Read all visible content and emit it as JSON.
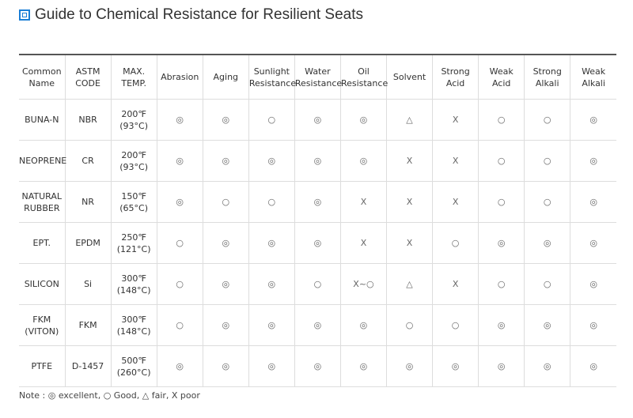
{
  "header": {
    "title": "Guide to Chemical Resistance for Resilient Seats"
  },
  "table": {
    "columns": [
      "Common\nName",
      "ASTM\nCODE",
      "MAX.\nTEMP.",
      "Abrasion",
      "Aging",
      "Sunlight\nResistance",
      "Water\nResistance",
      "Oil\nResistance",
      "Solvent",
      "Strong\nAcid",
      "Weak\nAcid",
      "Strong\nAlkali",
      "Weak\nAlkali"
    ],
    "rows": [
      [
        "BUNA-N",
        "NBR",
        "200℉\n(93°C)",
        "◎",
        "◎",
        "○",
        "◎",
        "◎",
        "△",
        "X",
        "○",
        "○",
        "◎"
      ],
      [
        "NEOPRENE",
        "CR",
        "200℉\n(93°C)",
        "◎",
        "◎",
        "◎",
        "◎",
        "◎",
        "X",
        "X",
        "○",
        "○",
        "◎"
      ],
      [
        "NATURAL\nRUBBER",
        "NR",
        "150℉\n(65°C)",
        "◎",
        "○",
        "○",
        "◎",
        "X",
        "X",
        "X",
        "○",
        "○",
        "◎"
      ],
      [
        "EPT.",
        "EPDM",
        "250℉\n(121°C)",
        "○",
        "◎",
        "◎",
        "◎",
        "X",
        "X",
        "○",
        "◎",
        "◎",
        "◎"
      ],
      [
        "SILICON",
        "Si",
        "300℉\n(148°C)",
        "○",
        "◎",
        "◎",
        "○",
        "X~○",
        "△",
        "X",
        "○",
        "○",
        "◎"
      ],
      [
        "FKM\n(VITON)",
        "FKM",
        "300℉\n(148°C)",
        "○",
        "◎",
        "◎",
        "◎",
        "◎",
        "○",
        "○",
        "◎",
        "◎",
        "◎"
      ],
      [
        "PTFE",
        "D-1457",
        "500℉\n(260°C)",
        "◎",
        "◎",
        "◎",
        "◎",
        "◎",
        "◎",
        "◎",
        "◎",
        "◎",
        "◎"
      ]
    ]
  },
  "note": "Note : ◎ excellent, ○ Good, △ fair, X poor"
}
